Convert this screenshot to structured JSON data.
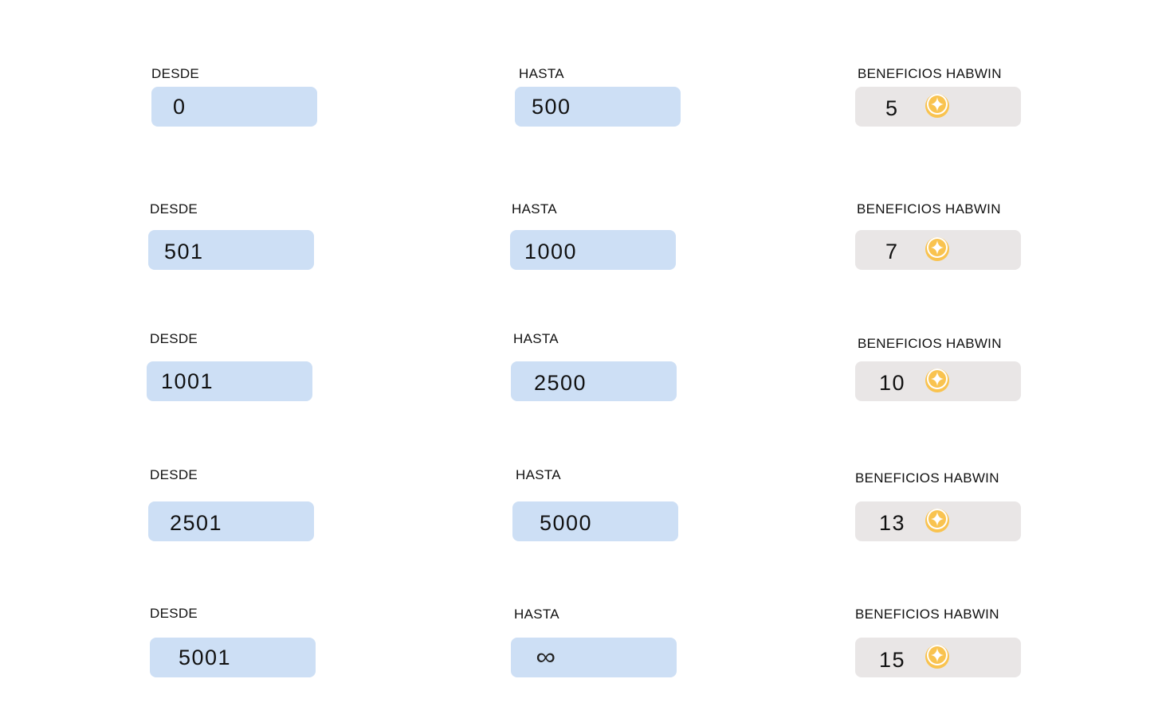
{
  "labels": {
    "from": "DESDE",
    "to": "HASTA",
    "benefits": "BENEFICIOS HABWIN"
  },
  "coin_icon": "habwin-coin-icon",
  "colors": {
    "range_box": "#cddff5",
    "benefit_box": "#e9e6e6",
    "coin": "#f9c34f"
  },
  "tiers": [
    {
      "from": "0",
      "to": "500",
      "benefit": "5"
    },
    {
      "from": "501",
      "to": "1000",
      "benefit": "7"
    },
    {
      "from": "1001",
      "to": "2500",
      "benefit": "10"
    },
    {
      "from": "2501",
      "to": "5000",
      "benefit": "13"
    },
    {
      "from": "5001",
      "to": "∞",
      "benefit": "15"
    }
  ]
}
